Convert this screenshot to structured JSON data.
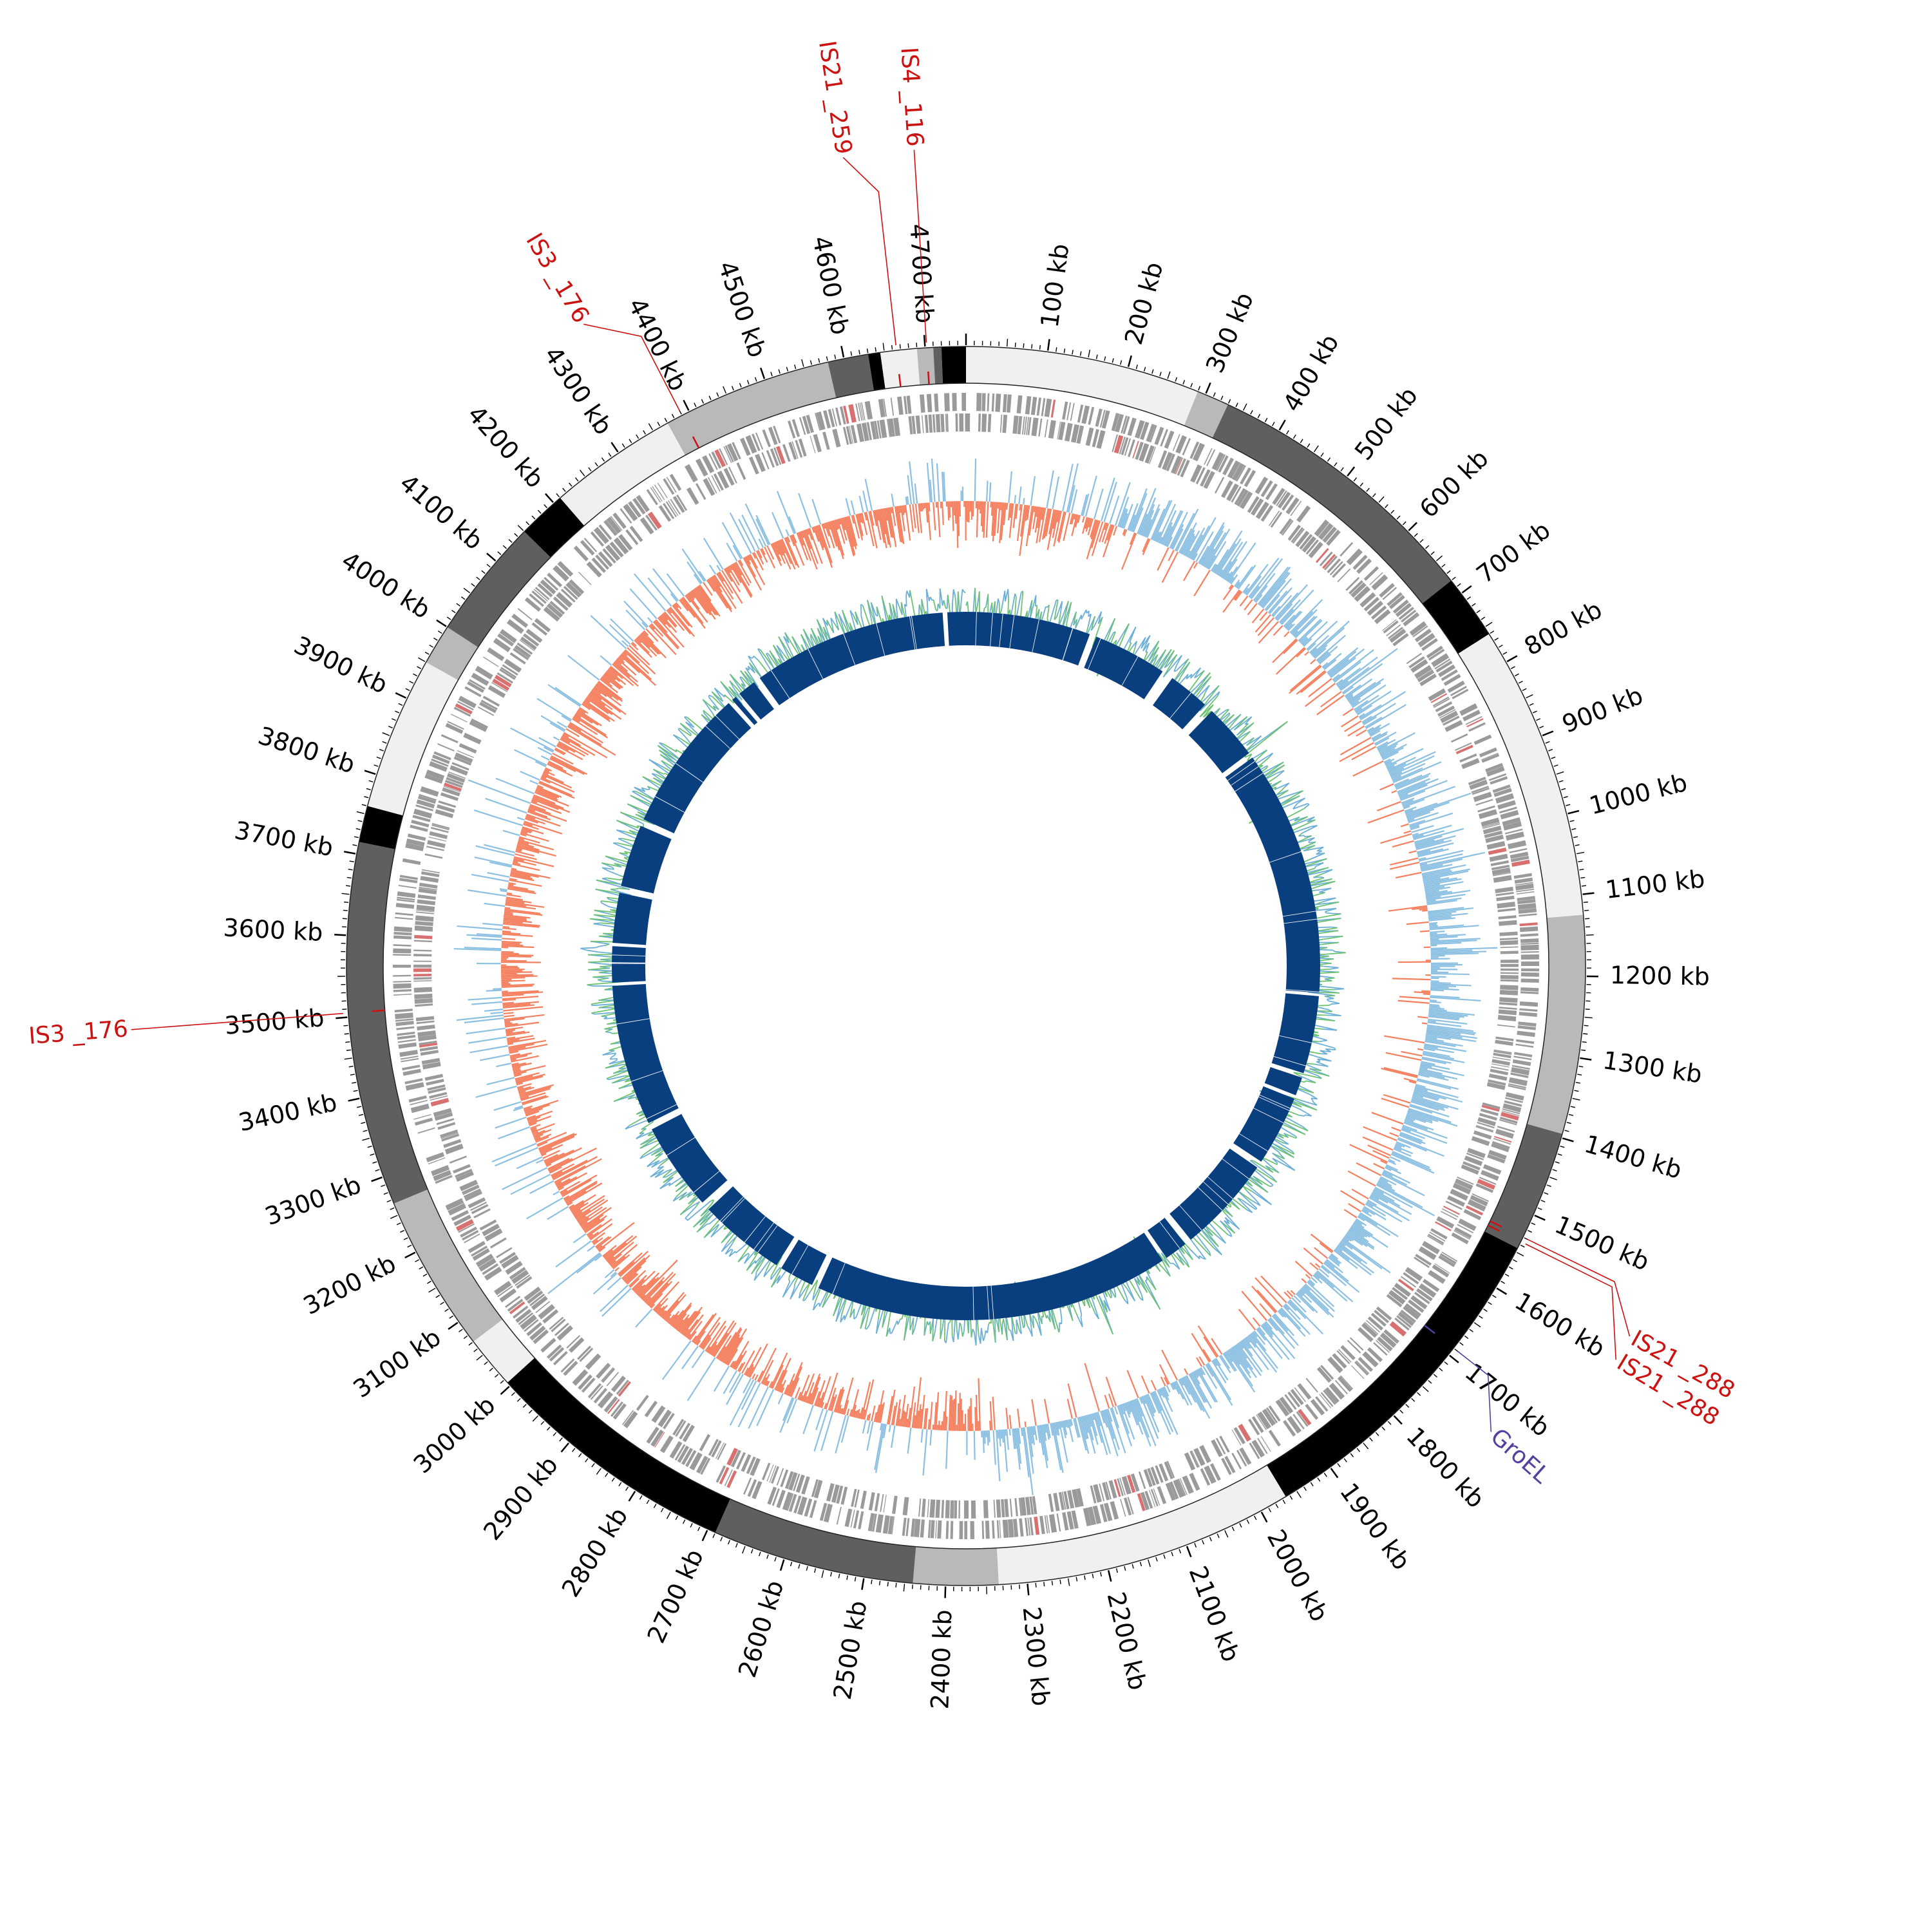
{
  "genome": {
    "length_kb": 4750,
    "tick_labels": [
      "100 kb",
      "200 kb",
      "300 kb",
      "400 kb",
      "500 kb",
      "600 kb",
      "700 kb",
      "800 kb",
      "900 kb",
      "1000 kb",
      "1100 kb",
      "1200 kb",
      "1300 kb",
      "1400 kb",
      "1500 kb",
      "1600 kb",
      "1700 kb",
      "1800 kb",
      "1900 kb",
      "2000 kb",
      "2100 kb",
      "2200 kb",
      "2300 kb",
      "2400 kb",
      "2500 kb",
      "2600 kb",
      "2700 kb",
      "2800 kb",
      "2900 kb",
      "3000 kb",
      "3100 kb",
      "3200 kb",
      "3300 kb",
      "3400 kb",
      "3500 kb",
      "3600 kb",
      "3700 kb",
      "3800 kb",
      "3900 kb",
      "4000 kb",
      "4100 kb",
      "4200 kb",
      "4300 kb",
      "4400 kb",
      "4500 kb",
      "4600 kb",
      "4700 kb"
    ],
    "tick_values_kb": [
      100,
      200,
      300,
      400,
      500,
      600,
      700,
      800,
      900,
      1000,
      1100,
      1200,
      1300,
      1400,
      1500,
      1600,
      1700,
      1800,
      1900,
      2000,
      2100,
      2200,
      2300,
      2400,
      2500,
      2600,
      2700,
      2800,
      2900,
      3000,
      3100,
      3200,
      3300,
      3400,
      3500,
      3600,
      3700,
      3800,
      3900,
      4000,
      4100,
      4200,
      4300,
      4400,
      4500,
      4600,
      4700
    ]
  },
  "colors": {
    "ideogram_white": "#f0f0f0",
    "ideogram_light": "#b9b9b9",
    "ideogram_dark": "#5f5f5f",
    "ideogram_black": "#000000",
    "gene_gray": "#9a9a9a",
    "gene_red": "#d87070",
    "gc_skew_positive": "#f4805f",
    "gc_skew_negative": "#8cc0e2",
    "gc_content_high": "#6baed6",
    "gc_content_low": "#6cc26e",
    "inner_blocks": "#0a3f7f",
    "is_label": "#cc1111",
    "groel_label": "#5540a0"
  },
  "ideogram_bands": [
    {
      "start": 0,
      "end": 290,
      "shade": "white"
    },
    {
      "start": 290,
      "end": 330,
      "shade": "light"
    },
    {
      "start": 330,
      "end": 680,
      "shade": "dark"
    },
    {
      "start": 680,
      "end": 760,
      "shade": "black"
    },
    {
      "start": 760,
      "end": 1125,
      "shade": "white"
    },
    {
      "start": 1125,
      "end": 1395,
      "shade": "light"
    },
    {
      "start": 1395,
      "end": 1545,
      "shade": "dark"
    },
    {
      "start": 1545,
      "end": 1965,
      "shade": "black"
    },
    {
      "start": 1965,
      "end": 2335,
      "shade": "white"
    },
    {
      "start": 2335,
      "end": 2440,
      "shade": "light"
    },
    {
      "start": 2440,
      "end": 2690,
      "shade": "dark"
    },
    {
      "start": 2690,
      "end": 3005,
      "shade": "black"
    },
    {
      "start": 3005,
      "end": 3070,
      "shade": "white"
    },
    {
      "start": 3070,
      "end": 3265,
      "shade": "light"
    },
    {
      "start": 3265,
      "end": 3715,
      "shade": "dark"
    },
    {
      "start": 3715,
      "end": 3760,
      "shade": "black"
    },
    {
      "start": 3760,
      "end": 3950,
      "shade": "white"
    },
    {
      "start": 3950,
      "end": 4000,
      "shade": "light"
    },
    {
      "start": 4000,
      "end": 4150,
      "shade": "dark"
    },
    {
      "start": 4150,
      "end": 4210,
      "shade": "black"
    },
    {
      "start": 4210,
      "end": 4370,
      "shade": "white"
    },
    {
      "start": 4370,
      "end": 4580,
      "shade": "light"
    },
    {
      "start": 4580,
      "end": 4630,
      "shade": "dark"
    },
    {
      "start": 4630,
      "end": 4645,
      "shade": "black"
    },
    {
      "start": 4645,
      "end": 4690,
      "shade": "white"
    },
    {
      "start": 4690,
      "end": 4710,
      "shade": "light"
    },
    {
      "start": 4710,
      "end": 4720,
      "shade": "dark"
    },
    {
      "start": 4720,
      "end": 4750,
      "shade": "black"
    }
  ],
  "inner_blocks": [
    {
      "start": 0,
      "end": 270
    },
    {
      "start": 285,
      "end": 445
    },
    {
      "start": 470,
      "end": 560
    },
    {
      "start": 580,
      "end": 700
    },
    {
      "start": 712,
      "end": 1245
    },
    {
      "start": 1252,
      "end": 1420
    },
    {
      "start": 1430,
      "end": 1470
    },
    {
      "start": 1478,
      "end": 1630
    },
    {
      "start": 1645,
      "end": 1855
    },
    {
      "start": 1870,
      "end": 1920
    },
    {
      "start": 1930,
      "end": 2700
    },
    {
      "start": 2715,
      "end": 2790
    },
    {
      "start": 2802,
      "end": 2990
    },
    {
      "start": 3008,
      "end": 3200
    },
    {
      "start": 3215,
      "end": 3520
    },
    {
      "start": 3527,
      "end": 3605
    },
    {
      "start": 3612,
      "end": 3720
    },
    {
      "start": 3735,
      "end": 3870
    },
    {
      "start": 3885,
      "end": 4195
    },
    {
      "start": 4205,
      "end": 4215
    },
    {
      "start": 4225,
      "end": 4265
    },
    {
      "start": 4280,
      "end": 4700
    },
    {
      "start": 4710,
      "end": 4750
    }
  ],
  "features": [
    {
      "label": "IS4 _116",
      "position_kb": 4702,
      "color": "#cc1111"
    },
    {
      "label": "IS21 _259",
      "position_kb": 4665,
      "color": "#cc1111"
    },
    {
      "label": "IS3 _176",
      "position_kb": 4390,
      "color": "#cc1111"
    },
    {
      "label": "IS3 _176",
      "position_kb": 3505,
      "color": "#cc1111"
    },
    {
      "label": "IS21 _288",
      "position_kb": 1530,
      "color": "#cc1111"
    },
    {
      "label": "IS21 _288",
      "position_kb": 1536,
      "color": "#cc1111"
    },
    {
      "label": "GroEL",
      "position_kb": 1690,
      "color": "#5540a0"
    }
  ]
}
